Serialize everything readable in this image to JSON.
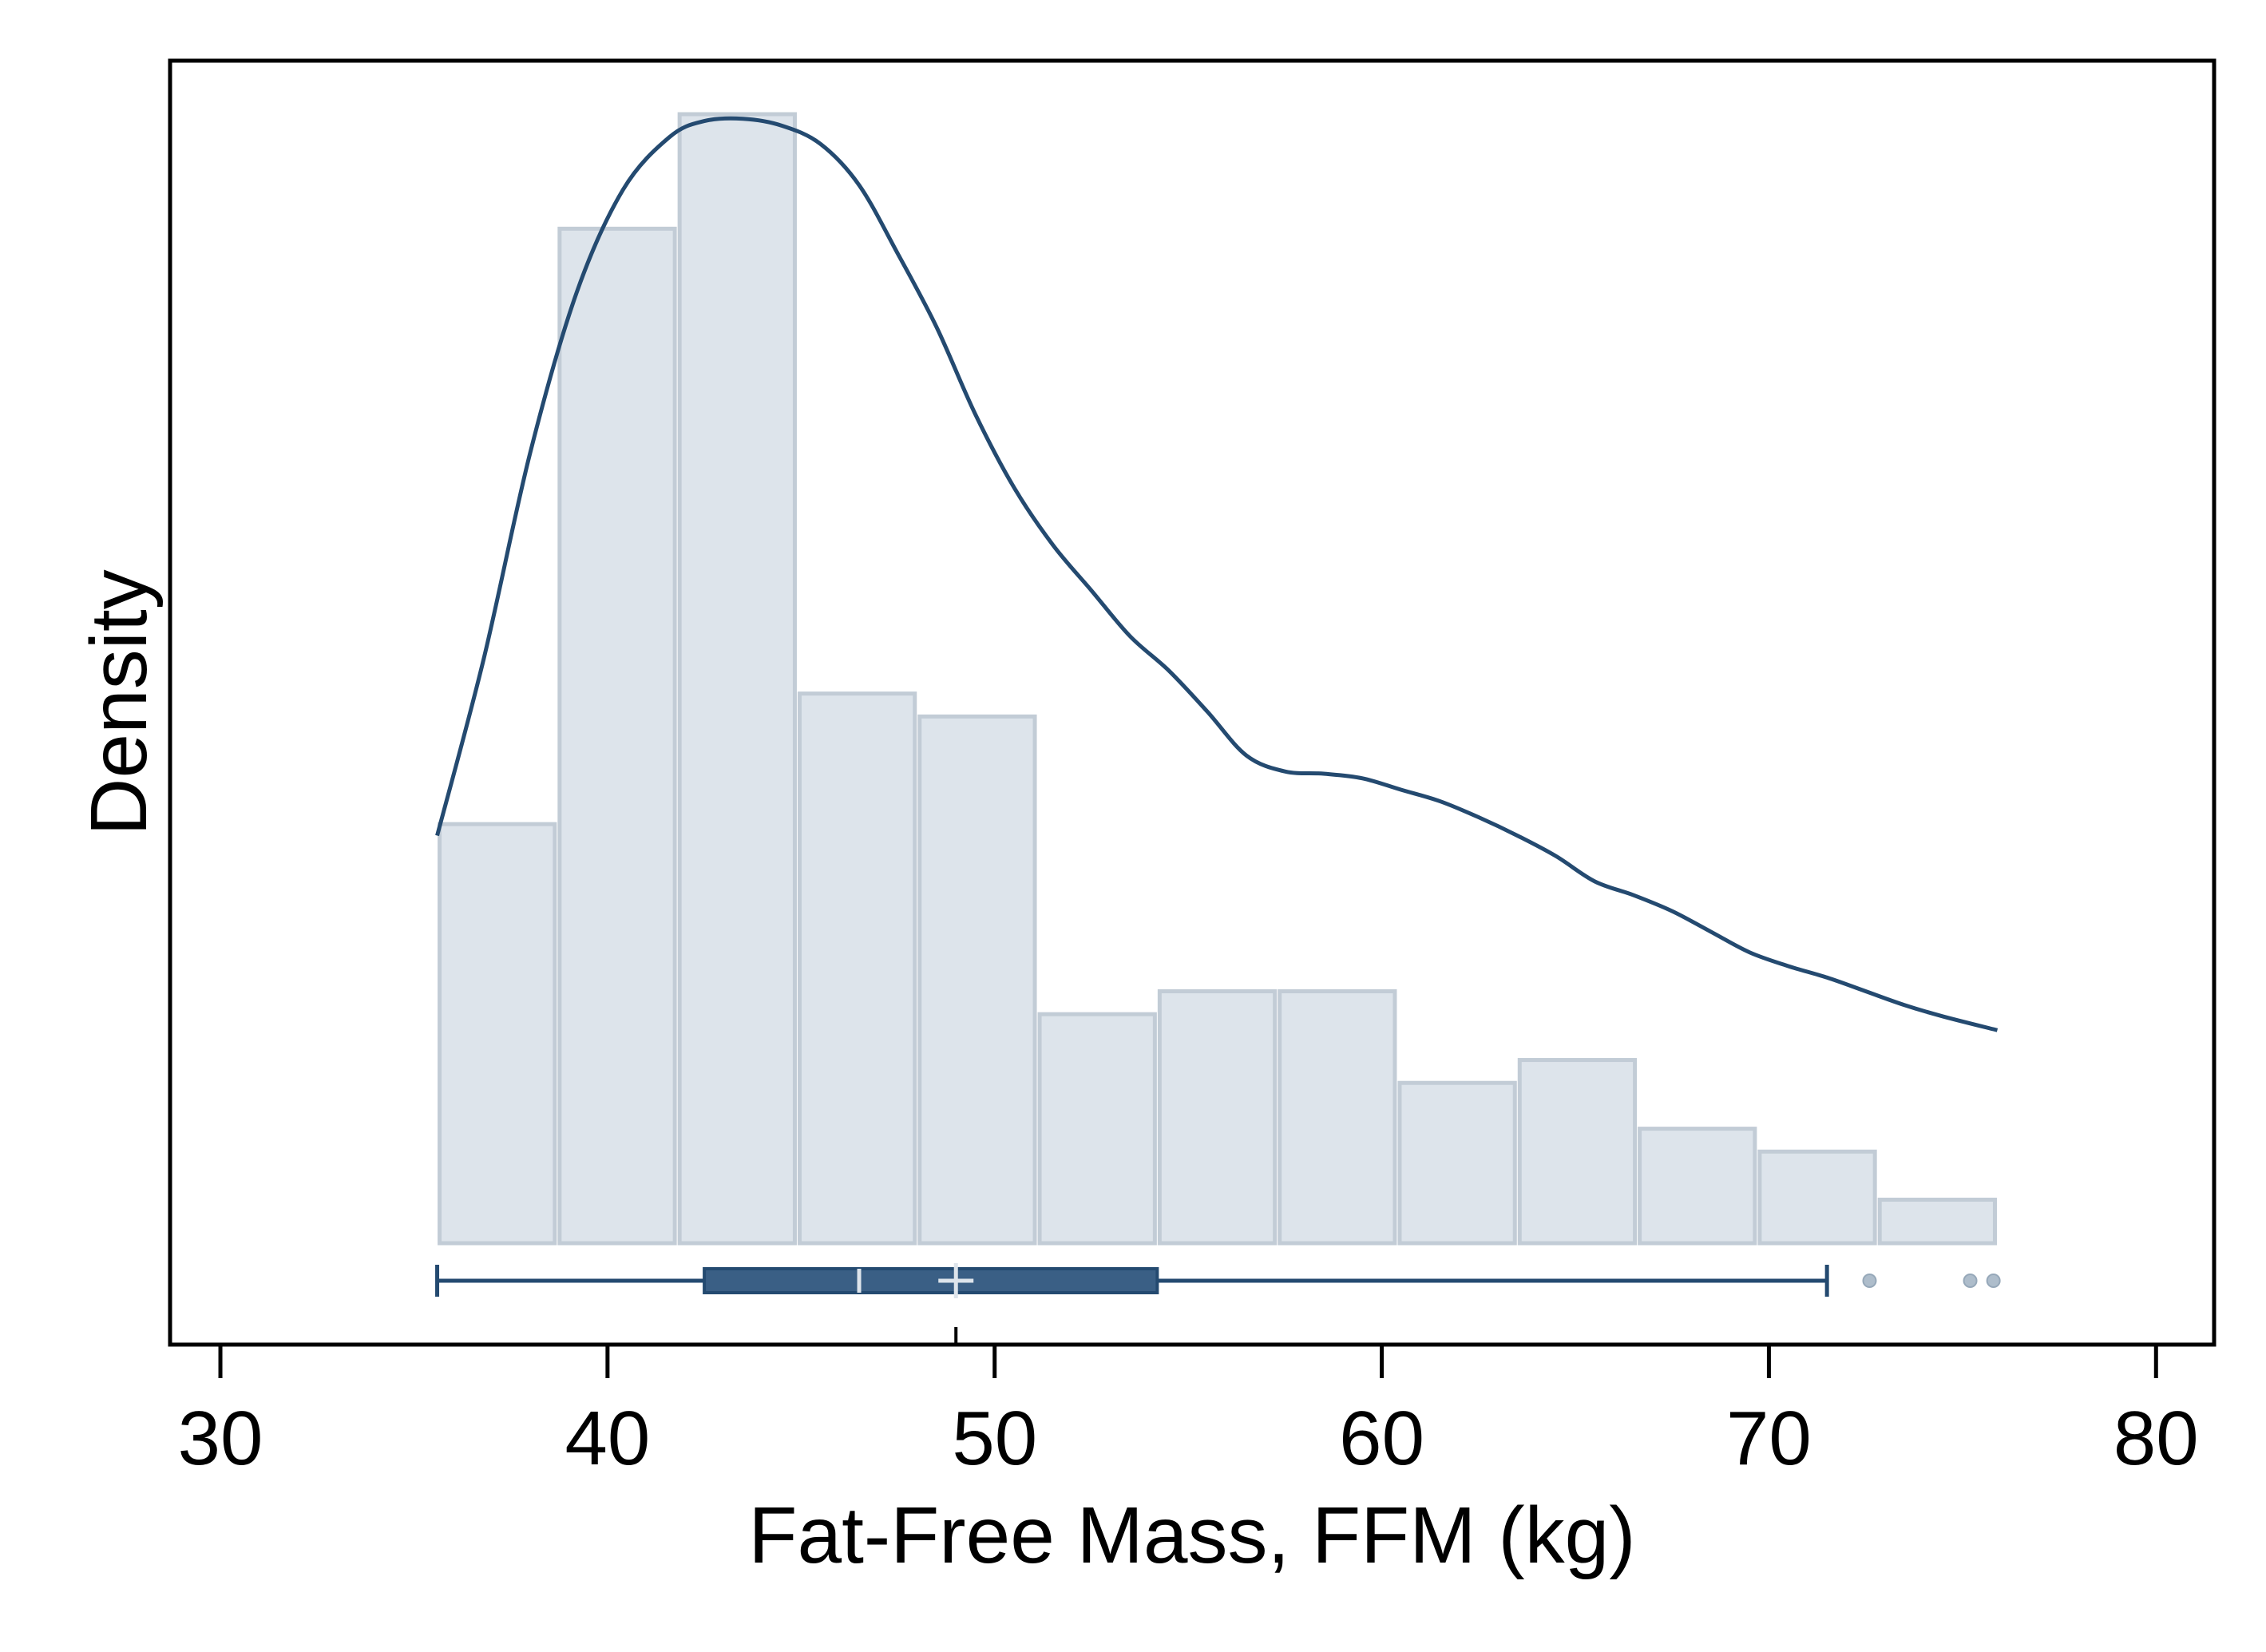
{
  "chart_data": {
    "type": "bar",
    "xlabel": "Fat-Free Mass, FFM (kg)",
    "ylabel": "Density",
    "xlim": [
      28.7,
      81.5
    ],
    "x_ticks": [
      30,
      40,
      50,
      60,
      70,
      80
    ],
    "y_ticks_shown": false,
    "grid": false,
    "histogram": {
      "bins": [
        {
          "start": 35.6,
          "end": 38.7,
          "density": 0.0183
        },
        {
          "start": 38.7,
          "end": 41.8,
          "density": 0.0443
        },
        {
          "start": 41.8,
          "end": 44.9,
          "density": 0.0493
        },
        {
          "start": 44.9,
          "end": 48.0,
          "density": 0.024
        },
        {
          "start": 48.0,
          "end": 51.1,
          "density": 0.023
        },
        {
          "start": 51.1,
          "end": 54.2,
          "density": 0.01
        },
        {
          "start": 54.2,
          "end": 57.3,
          "density": 0.011
        },
        {
          "start": 57.3,
          "end": 60.4,
          "density": 0.011
        },
        {
          "start": 60.4,
          "end": 63.5,
          "density": 0.007
        },
        {
          "start": 63.5,
          "end": 66.6,
          "density": 0.008
        },
        {
          "start": 66.6,
          "end": 69.7,
          "density": 0.005
        },
        {
          "start": 69.7,
          "end": 72.8,
          "density": 0.004
        },
        {
          "start": 72.8,
          "end": 75.9,
          "density": 0.0019
        }
      ],
      "fill_color": "#dde4eb",
      "edge_color": "#c2ccd6"
    },
    "density_curve": {
      "x": [
        35.6,
        36.8,
        38.0,
        39.2,
        40.4,
        41.6,
        42.5,
        43.5,
        44.5,
        45.5,
        46.5,
        47.5,
        48.5,
        49.5,
        50.5,
        51.5,
        52.5,
        53.5,
        54.5,
        55.5,
        56.5,
        57.5,
        58.5,
        59.5,
        60.5,
        61.5,
        62.5,
        63.5,
        64.5,
        65.5,
        66.5,
        67.5,
        68.5,
        69.5,
        70.5,
        71.5,
        72.5,
        73.5,
        74.5,
        75.9
      ],
      "y": [
        0.0178,
        0.0255,
        0.0345,
        0.0415,
        0.046,
        0.0483,
        0.049,
        0.0491,
        0.0488,
        0.048,
        0.0462,
        0.0432,
        0.04,
        0.0362,
        0.033,
        0.0305,
        0.0285,
        0.0265,
        0.025,
        0.0232,
        0.0213,
        0.0206,
        0.0205,
        0.0203,
        0.0198,
        0.0193,
        0.0186,
        0.0178,
        0.0169,
        0.0158,
        0.0152,
        0.0145,
        0.0136,
        0.0127,
        0.0121,
        0.0116,
        0.011,
        0.0104,
        0.0099,
        0.0093
      ],
      "color": "#244a70"
    },
    "boxplot": {
      "whisker_low": 35.6,
      "q1": 42.5,
      "median": 46.5,
      "mean": 49.0,
      "q3": 54.2,
      "whisker_high": 71.5,
      "outliers": [
        72.6,
        75.2,
        75.8
      ],
      "box_color": "#3a5f85",
      "outline_color": "#244a70",
      "outlier_color": "#aebdcb"
    },
    "axis_color": "#000000"
  }
}
